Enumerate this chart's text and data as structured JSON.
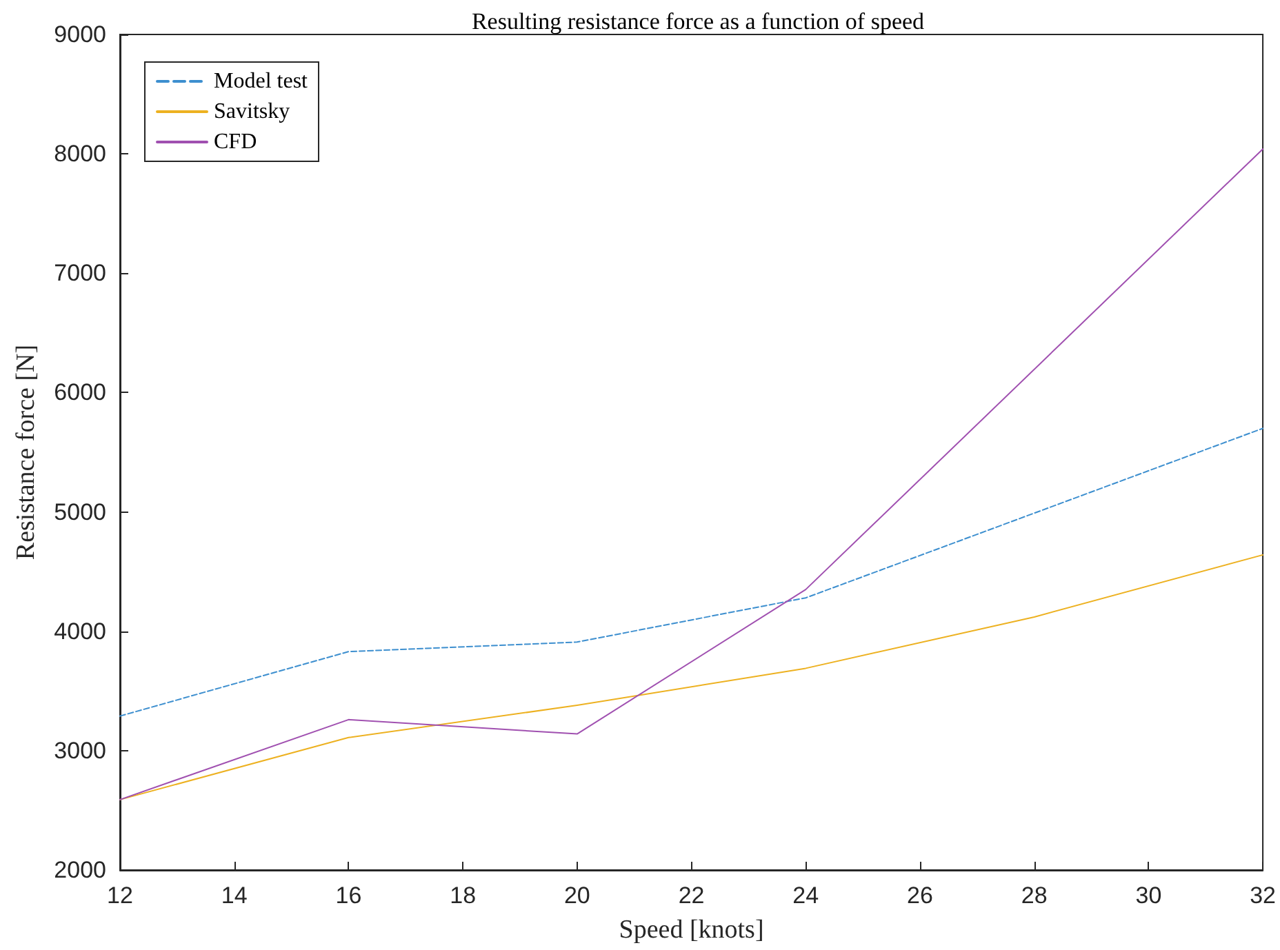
{
  "chart_data": {
    "type": "line",
    "title": "Resulting resistance force as a function of speed",
    "xlabel": "Speed [knots]",
    "ylabel": "Resistance force [N]",
    "x": [
      12,
      16,
      20,
      24,
      28,
      32
    ],
    "series": [
      {
        "name": "Model test",
        "color": "#3d8fcf",
        "line_style": "dashed",
        "values": [
          3290,
          3830,
          3910,
          4280,
          4990,
          5700
        ]
      },
      {
        "name": "Savitsky",
        "color": "#edb120",
        "line_style": "solid",
        "values": [
          2590,
          3110,
          3380,
          3690,
          4120,
          4640
        ]
      },
      {
        "name": "CFD",
        "color": "#a050b0",
        "line_style": "solid",
        "x": [
          12,
          16,
          20,
          24,
          32
        ],
        "values": [
          2590,
          3260,
          3140,
          4350,
          8040
        ]
      }
    ],
    "xlim": [
      12,
      32
    ],
    "xticks": [
      12,
      14,
      16,
      18,
      20,
      22,
      24,
      26,
      28,
      30,
      32
    ],
    "ylim": [
      2000,
      9000
    ],
    "yticks": [
      2000,
      3000,
      4000,
      5000,
      6000,
      7000,
      8000,
      9000
    ],
    "grid": false,
    "legend": "top left",
    "marker": "none"
  }
}
